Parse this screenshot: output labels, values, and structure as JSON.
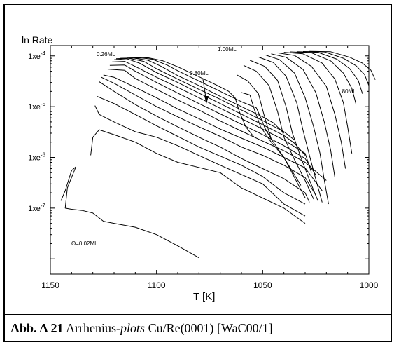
{
  "chart_data": {
    "type": "line",
    "ylabel": "ln Rate",
    "xlabel": "T [K]",
    "x_reversed": true,
    "xlim": [
      1150,
      1000
    ],
    "y_log": true,
    "ylim": [
      5e-09,
      0.00016
    ],
    "x_ticks": [
      "1150",
      "1100",
      "1050",
      "1000"
    ],
    "y_ticks": [
      "1xe-4",
      "1xe-5",
      "1xe-6",
      "1xe-7"
    ],
    "annotations": [
      "0.26ML",
      "1.00ML",
      "0.80ML",
      "1.80ML",
      "Θ=0.02ML"
    ],
    "series": [
      {
        "values": [
          [
            1145,
            1.4e-07
          ],
          [
            1143,
            2.2e-07
          ],
          [
            1140,
            5.5e-07
          ],
          [
            1138,
            6.5e-07
          ],
          [
            1142,
            2.5e-07
          ],
          [
            1143,
            1e-07
          ],
          [
            1140,
            9.5e-08
          ],
          [
            1135,
            9e-08
          ],
          [
            1130,
            8e-08
          ],
          [
            1125,
            5.5e-08
          ],
          [
            1120,
            5e-08
          ],
          [
            1110,
            4.2e-08
          ],
          [
            1100,
            3e-08
          ],
          [
            1090,
            1.8e-08
          ],
          [
            1080,
            1.05e-08
          ]
        ]
      },
      {
        "values": [
          [
            1131,
            1.1e-06
          ],
          [
            1130,
            2.5e-06
          ],
          [
            1127,
            3.5e-06
          ],
          [
            1120,
            2.8e-06
          ],
          [
            1110,
            2e-06
          ],
          [
            1100,
            1.2e-06
          ],
          [
            1090,
            8e-07
          ],
          [
            1070,
            5e-07
          ],
          [
            1060,
            2.5e-07
          ],
          [
            1040,
            1e-07
          ],
          [
            1030,
            5e-08
          ]
        ]
      },
      {
        "values": [
          [
            1129,
            1.05e-05
          ],
          [
            1127,
            7e-06
          ],
          [
            1120,
            5e-06
          ],
          [
            1110,
            3.2e-06
          ],
          [
            1100,
            2.5e-06
          ],
          [
            1090,
            1.7e-06
          ],
          [
            1070,
            7e-07
          ],
          [
            1050,
            3e-07
          ],
          [
            1040,
            1.2e-07
          ],
          [
            1030,
            7e-08
          ]
        ]
      },
      {
        "values": [
          [
            1128,
            1.6e-05
          ],
          [
            1120,
            1.15e-05
          ],
          [
            1110,
            7e-06
          ],
          [
            1100,
            4.2e-06
          ],
          [
            1090,
            2.6e-06
          ],
          [
            1080,
            1.6e-06
          ],
          [
            1060,
            7e-07
          ],
          [
            1050,
            4.2e-07
          ],
          [
            1040,
            2e-07
          ],
          [
            1030,
            1.2e-07
          ]
        ]
      },
      {
        "values": [
          [
            1127,
            3.1e-05
          ],
          [
            1120,
            2e-05
          ],
          [
            1110,
            1.1e-05
          ],
          [
            1100,
            6.5e-06
          ],
          [
            1090,
            4e-06
          ],
          [
            1080,
            2.5e-06
          ],
          [
            1070,
            1.6e-06
          ],
          [
            1060,
            9.5e-07
          ],
          [
            1050,
            6e-07
          ],
          [
            1040,
            3.8e-07
          ],
          [
            1030,
            2e-07
          ],
          [
            1028,
            1.3e-07
          ]
        ]
      },
      {
        "values": [
          [
            1126,
            3.8e-05
          ],
          [
            1120,
            2.9e-05
          ],
          [
            1110,
            1.7e-05
          ],
          [
            1100,
            1e-05
          ],
          [
            1090,
            6.3e-06
          ],
          [
            1080,
            4e-06
          ],
          [
            1070,
            2.6e-06
          ],
          [
            1060,
            1.6e-06
          ],
          [
            1050,
            1.1e-06
          ],
          [
            1040,
            7e-07
          ],
          [
            1030,
            4e-07
          ],
          [
            1025,
            1.8e-07
          ]
        ]
      },
      {
        "values": [
          [
            1125,
            4.2e-05
          ],
          [
            1120,
            3.8e-05
          ],
          [
            1110,
            2.4e-05
          ],
          [
            1100,
            1.5e-05
          ],
          [
            1090,
            9e-06
          ],
          [
            1080,
            5.8e-06
          ],
          [
            1070,
            3.6e-06
          ],
          [
            1060,
            2.4e-06
          ],
          [
            1050,
            1.6e-06
          ],
          [
            1040,
            1e-06
          ],
          [
            1030,
            6.2e-07
          ],
          [
            1022,
            2.2e-07
          ]
        ]
      },
      {
        "values": [
          [
            1123,
            5.5e-05
          ],
          [
            1115,
            5.2e-05
          ],
          [
            1110,
            3.6e-05
          ],
          [
            1100,
            2.2e-05
          ],
          [
            1090,
            1.35e-05
          ],
          [
            1080,
            8.6e-06
          ],
          [
            1070,
            5.2e-06
          ],
          [
            1060,
            3.3e-06
          ],
          [
            1050,
            2.1e-06
          ],
          [
            1040,
            1.35e-06
          ],
          [
            1030,
            8e-07
          ],
          [
            1020,
            3.5e-07
          ]
        ]
      },
      {
        "values": [
          [
            1122,
            6.5e-05
          ],
          [
            1115,
            6.6e-05
          ],
          [
            1110,
            5e-05
          ],
          [
            1100,
            3e-05
          ],
          [
            1090,
            1.85e-05
          ],
          [
            1080,
            1.15e-05
          ],
          [
            1070,
            7.2e-06
          ],
          [
            1060,
            4.5e-06
          ],
          [
            1050,
            2.8e-06
          ],
          [
            1040,
            1.7e-06
          ],
          [
            1030,
            9.5e-07
          ],
          [
            1025,
            4.5e-07
          ]
        ]
      },
      {
        "values": [
          [
            1121,
            7.6e-05
          ],
          [
            1115,
            7.8e-05
          ],
          [
            1110,
            6.2e-05
          ],
          [
            1100,
            3.8e-05
          ],
          [
            1090,
            2.4e-05
          ],
          [
            1080,
            1.5e-05
          ],
          [
            1070,
            9.3e-06
          ],
          [
            1060,
            5.8e-06
          ],
          [
            1050,
            3.6e-06
          ],
          [
            1040,
            2.2e-06
          ],
          [
            1030,
            1.2e-06
          ],
          [
            1027,
            5e-07
          ]
        ]
      },
      {
        "values": [
          [
            1120,
            8.4e-05
          ],
          [
            1114,
            8.8e-05
          ],
          [
            1108,
            7.2e-05
          ],
          [
            1100,
            4.7e-05
          ],
          [
            1090,
            3e-05
          ],
          [
            1080,
            1.85e-05
          ],
          [
            1070,
            1.15e-05
          ],
          [
            1060,
            7.1e-06
          ],
          [
            1050,
            4.4e-06
          ],
          [
            1040,
            2.7e-06
          ],
          [
            1035,
            1.9e-06
          ],
          [
            1030,
            1.1e-06
          ]
        ]
      },
      {
        "values": [
          [
            1119,
            8.8e-05
          ],
          [
            1113,
            9e-05
          ],
          [
            1106,
            7.8e-05
          ],
          [
            1100,
            5.6e-05
          ],
          [
            1090,
            3.5e-05
          ],
          [
            1080,
            2.2e-05
          ],
          [
            1070,
            1.4e-05
          ],
          [
            1060,
            8.6e-06
          ],
          [
            1050,
            5.3e-06
          ],
          [
            1040,
            3.2e-06
          ],
          [
            1035,
            2.2e-06
          ]
        ]
      },
      {
        "values": [
          [
            1117,
            9e-05
          ],
          [
            1111,
            9.1e-05
          ],
          [
            1104,
            8.2e-05
          ],
          [
            1098,
            6.3e-05
          ],
          [
            1090,
            4.1e-05
          ],
          [
            1080,
            2.6e-05
          ],
          [
            1070,
            1.6e-05
          ],
          [
            1060,
            1e-05
          ],
          [
            1050,
            6.3e-06
          ],
          [
            1045,
            4.8e-06
          ],
          [
            1040,
            3e-06
          ]
        ]
      },
      {
        "values": [
          [
            1114,
            9.1e-05
          ],
          [
            1108,
            9.2e-05
          ],
          [
            1102,
            8.6e-05
          ],
          [
            1095,
            6.6e-05
          ],
          [
            1090,
            5.1e-05
          ],
          [
            1080,
            3.2e-05
          ],
          [
            1070,
            2e-05
          ],
          [
            1060,
            1.25e-05
          ],
          [
            1053,
            9.5e-06
          ],
          [
            1051,
            6.2e-06
          ],
          [
            1049,
            3.8e-06
          ],
          [
            1046,
            2.3e-06
          ]
        ]
      },
      {
        "values": [
          [
            1110,
            9e-05
          ],
          [
            1104,
            9.2e-05
          ],
          [
            1097,
            8e-05
          ],
          [
            1090,
            6.1e-05
          ],
          [
            1080,
            3.9e-05
          ],
          [
            1072,
            2.7e-05
          ],
          [
            1066,
            2e-05
          ],
          [
            1063,
            1.5e-05
          ],
          [
            1061,
            8e-06
          ],
          [
            1058,
            4e-06
          ],
          [
            1054,
            2.5e-06
          ]
        ]
      },
      {
        "values": [
          [
            1060,
            1.9e-05
          ],
          [
            1056,
            1.7e-05
          ],
          [
            1054,
            9e-06
          ],
          [
            1051,
            4e-06
          ],
          [
            1046,
            2e-06
          ],
          [
            1040,
            1e-06
          ],
          [
            1035,
            4.5e-07
          ],
          [
            1032,
            2.8e-07
          ]
        ]
      },
      {
        "values": [
          [
            1062,
            4.2e-05
          ],
          [
            1057,
            3.2e-05
          ],
          [
            1052,
            1.8e-05
          ],
          [
            1049,
            6e-06
          ],
          [
            1046,
            2.3e-06
          ],
          [
            1040,
            1e-06
          ],
          [
            1035,
            4e-07
          ],
          [
            1030,
            1.6e-07
          ]
        ]
      },
      {
        "values": [
          [
            1059,
            6.5e-05
          ],
          [
            1053,
            5e-05
          ],
          [
            1047,
            2.6e-05
          ],
          [
            1043,
            8e-06
          ],
          [
            1040,
            2.5e-06
          ],
          [
            1035,
            9e-07
          ],
          [
            1030,
            3.5e-07
          ],
          [
            1026,
            1.5e-07
          ]
        ]
      },
      {
        "values": [
          [
            1056,
            8.2e-05
          ],
          [
            1049,
            6.2e-05
          ],
          [
            1043,
            3.3e-05
          ],
          [
            1039,
            1e-05
          ],
          [
            1036,
            3e-06
          ],
          [
            1032,
            1e-06
          ],
          [
            1028,
            3.6e-07
          ],
          [
            1024,
            1.4e-07
          ]
        ]
      },
      {
        "values": [
          [
            1052,
            9.5e-05
          ],
          [
            1045,
            7.4e-05
          ],
          [
            1039,
            4e-05
          ],
          [
            1034,
            1.2e-05
          ],
          [
            1031,
            3.4e-06
          ],
          [
            1028,
            1.1e-06
          ],
          [
            1025,
            3.7e-07
          ],
          [
            1022,
            1.3e-07
          ]
        ]
      },
      {
        "values": [
          [
            1049,
            0.000105
          ],
          [
            1042,
            8.4e-05
          ],
          [
            1035,
            4.6e-05
          ],
          [
            1030,
            1.5e-05
          ],
          [
            1026,
            4e-06
          ],
          [
            1023,
            1.2e-06
          ],
          [
            1021,
            3.6e-07
          ],
          [
            1019,
            1.2e-07
          ]
        ]
      },
      {
        "values": [
          [
            1046,
            0.00011
          ],
          [
            1039,
            9.4e-05
          ],
          [
            1031,
            5.4e-05
          ],
          [
            1025,
            1.9e-05
          ],
          [
            1021,
            5e-06
          ],
          [
            1018,
            1.4e-06
          ],
          [
            1016,
            4e-07
          ]
        ]
      },
      {
        "values": [
          [
            1043,
            0.000115
          ],
          [
            1035,
            0.000102
          ],
          [
            1027,
            6.2e-05
          ],
          [
            1020,
            2.5e-05
          ],
          [
            1016,
            7e-06
          ],
          [
            1013,
            2e-06
          ],
          [
            1011,
            6e-07
          ]
        ]
      },
      {
        "values": [
          [
            1040,
            0.000118
          ],
          [
            1031,
            0.00011
          ],
          [
            1022,
            7.2e-05
          ],
          [
            1016,
            3.5e-05
          ],
          [
            1012,
            1.2e-05
          ],
          [
            1010,
            4e-06
          ],
          [
            1008,
            1.2e-06
          ]
        ]
      },
      {
        "values": [
          [
            1037,
            0.00012
          ],
          [
            1027,
            0.000115
          ],
          [
            1018,
            8e-05
          ],
          [
            1012,
            4.6e-05
          ],
          [
            1008,
            2.3e-05
          ],
          [
            1006,
            1.1e-05
          ]
        ]
      },
      {
        "values": [
          [
            1034,
            0.000121
          ],
          [
            1024,
            0.000118
          ],
          [
            1015,
            8.6e-05
          ],
          [
            1009,
            5.6e-05
          ],
          [
            1005,
            3.3e-05
          ],
          [
            1003,
            1.8e-05
          ]
        ]
      },
      {
        "values": [
          [
            1031,
            0.000122
          ],
          [
            1021,
            0.00012
          ],
          [
            1012,
            9e-05
          ],
          [
            1006,
            6.4e-05
          ],
          [
            1002,
            4.3e-05
          ],
          [
            1000,
            2.6e-05
          ]
        ]
      },
      {
        "values": [
          [
            1028,
            0.000123
          ],
          [
            1018,
            0.000121
          ],
          [
            1009,
            9.4e-05
          ],
          [
            1003,
            7.2e-05
          ],
          [
            999,
            5.2e-05
          ],
          [
            997,
            3.4e-05
          ]
        ]
      }
    ]
  },
  "caption": {
    "label": "Abb. A 21",
    "text_before": "Arrhenius-",
    "text_italic": "plots",
    "text_after": "Cu/Re(0001) [WaC00/1]"
  }
}
